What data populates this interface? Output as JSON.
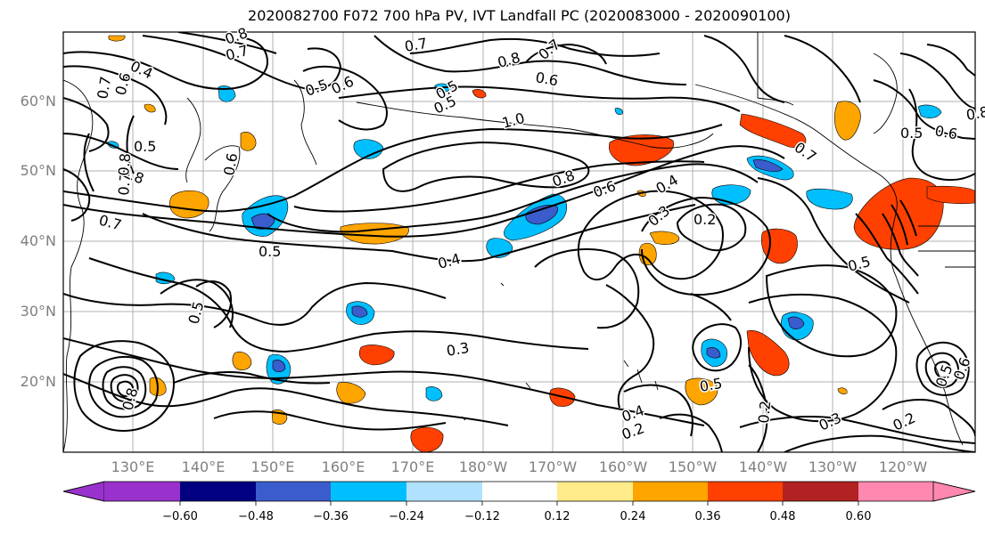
{
  "title": "2020082700 F072 700 hPa PV, IVT Landfall PC (2020083000 - 2020090100)",
  "lat_labels": [
    "60°N",
    "50°N",
    "40°N",
    "30°N",
    "20°N"
  ],
  "lon_labels": [
    "130°E",
    "140°E",
    "150°E",
    "160°E",
    "170°E",
    "180°W",
    "170°W",
    "160°W",
    "150°W",
    "140°W",
    "130°W",
    "120°W"
  ],
  "colorbar": {
    "colors": [
      "#9932cc",
      "#000080",
      "#3a5ccc",
      "#00bfff",
      "#b0e2ff",
      "#ffffff",
      "#ffeb8a",
      "#ffa500",
      "#ff4000",
      "#b22222",
      "#ff88b0"
    ],
    "ticks": [
      "−0.60",
      "−0.48",
      "−0.36",
      "−0.24",
      "−0.12",
      "0.12",
      "0.24",
      "0.36",
      "0.48",
      "0.60"
    ]
  },
  "contour_labels": [
    "0.8",
    "0.7",
    "0.4",
    "0.5",
    "0.7",
    "0.6",
    "0.5",
    "0.8",
    "0.6",
    "0.7",
    "0.8",
    "0.6",
    "0.7",
    "0.5",
    "1.0",
    "0.5",
    "0.8",
    "0.6",
    "0.7",
    "0.7",
    "0.8",
    "0.6",
    "0.4",
    "0.3",
    "0.2",
    "0.7",
    "0.5",
    "0.4",
    "0.5",
    "0.3",
    "0.5",
    "0.5",
    "0.4",
    "0.2",
    "0.2",
    "0.3",
    "0.2",
    "0.5",
    "0.6",
    "0.8",
    "0.6",
    "0.8",
    "0.5"
  ]
}
